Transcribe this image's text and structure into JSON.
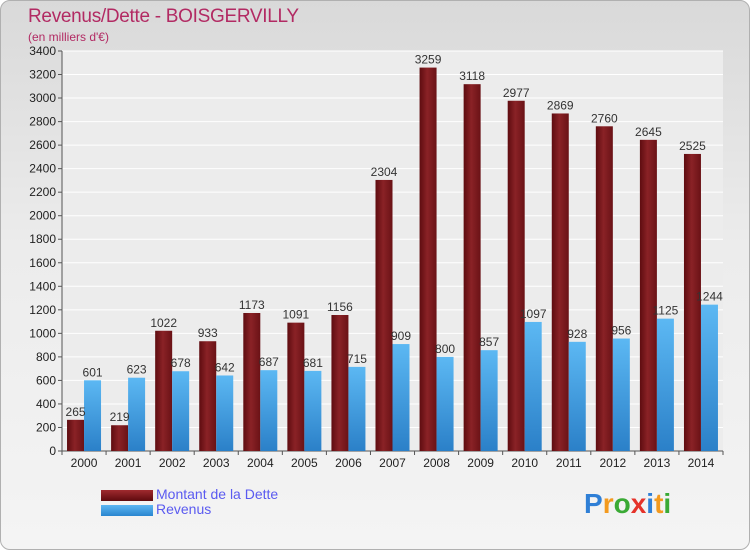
{
  "chart_data": {
    "type": "bar",
    "title": "Revenus/Dette - BOISGERVILLY",
    "subtitle": "(en milliers d'€)",
    "categories": [
      "2000",
      "2001",
      "2002",
      "2003",
      "2004",
      "2005",
      "2006",
      "2007",
      "2008",
      "2009",
      "2010",
      "2011",
      "2012",
      "2013",
      "2014"
    ],
    "series": [
      {
        "name": "Montant de la Dette",
        "color": "#7a1418",
        "values": [
          265,
          219,
          1022,
          933,
          1173,
          1091,
          1156,
          2304,
          3259,
          3118,
          2977,
          2869,
          2760,
          2645,
          2525
        ]
      },
      {
        "name": "Revenus",
        "color": "#3a9be0",
        "values": [
          601,
          623,
          678,
          642,
          687,
          681,
          715,
          909,
          800,
          857,
          1097,
          928,
          956,
          1125,
          1244
        ]
      }
    ],
    "ylim": [
      0,
      3400
    ],
    "yticks": [
      0,
      200,
      400,
      600,
      800,
      1000,
      1200,
      1400,
      1600,
      1800,
      2000,
      2200,
      2400,
      2600,
      2800,
      3000,
      3200,
      3400
    ],
    "grid": true,
    "legend_position": "bottom-left"
  },
  "logo": {
    "letters": [
      "P",
      "r",
      "o",
      "x",
      "i",
      "t",
      "i"
    ],
    "colors": [
      "#2f7fd6",
      "#f39a1f",
      "#3aaa35",
      "#e5332a",
      "#2f7fd6",
      "#f39a1f",
      "#3aaa35"
    ]
  }
}
